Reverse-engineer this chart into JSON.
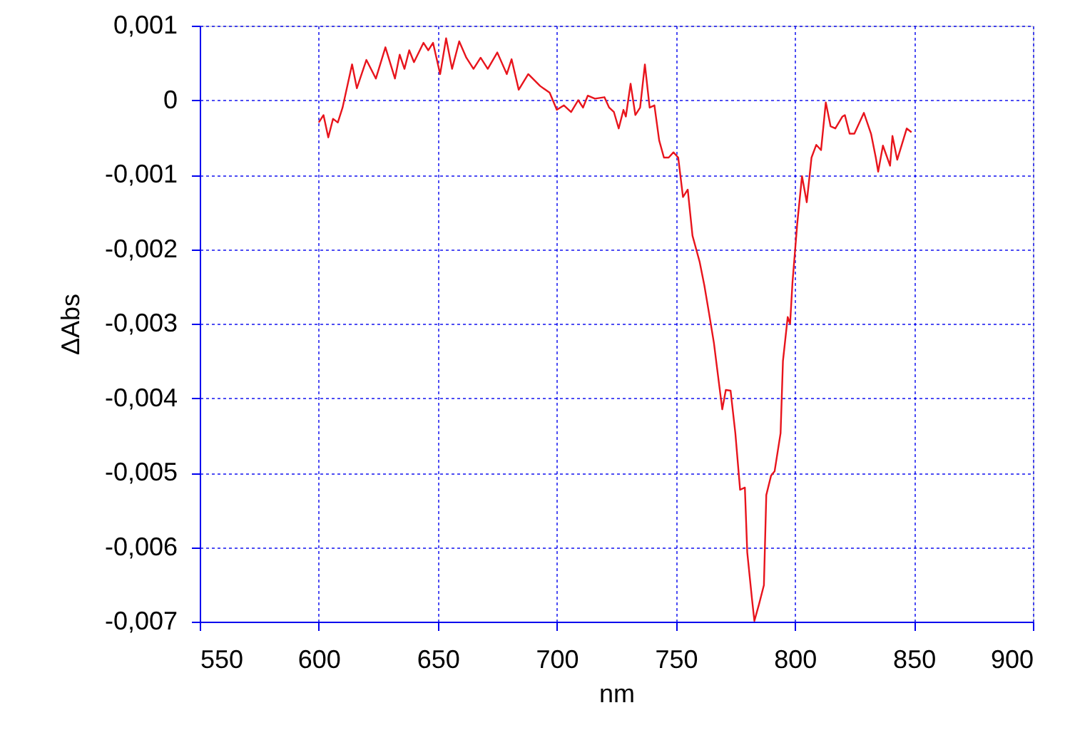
{
  "chart_data": {
    "type": "line",
    "xlabel": "nm",
    "ylabel": "ΔAbs",
    "x": [
      600,
      602,
      604,
      606,
      608,
      610,
      614,
      616,
      620,
      624,
      628,
      632,
      634,
      636,
      638,
      640,
      644,
      646,
      648,
      651,
      653.5,
      656,
      659,
      662,
      665,
      668,
      671,
      675,
      679,
      681,
      684,
      688,
      693,
      697,
      700,
      703,
      706,
      709,
      711,
      713,
      716,
      720,
      722,
      724,
      726,
      728,
      729,
      731,
      733,
      735,
      737,
      739,
      741,
      743,
      745,
      747,
      749,
      751,
      753,
      755,
      757,
      760,
      762,
      764,
      766,
      768,
      769.5,
      771,
      773,
      775,
      777,
      779,
      780,
      782,
      783,
      785,
      787,
      788,
      790,
      791.5,
      794,
      795,
      797,
      798,
      799,
      801,
      803,
      805,
      807,
      809,
      811,
      813,
      815,
      817,
      820,
      821,
      823,
      825,
      829,
      832,
      834,
      835,
      837,
      840,
      841,
      843,
      847,
      849
    ],
    "series": [
      {
        "color": "#e8141c",
        "values": [
          -0.0003,
          -0.0002,
          -0.0005,
          -0.00025,
          -0.0003,
          -0.0001,
          0.00048,
          0.00016,
          0.00054,
          0.00029,
          0.00071,
          0.00029,
          0.00061,
          0.00042,
          0.00067,
          0.00051,
          0.00077,
          0.00067,
          0.00077,
          0.00035,
          0.00083,
          0.00042,
          0.00079,
          0.00057,
          0.00042,
          0.00057,
          0.00042,
          0.00064,
          0.00035,
          0.00055,
          0.00014,
          0.00035,
          0.00019,
          0.0001,
          -0.00013,
          -7e-05,
          -0.00016,
          0,
          -0.0001,
          6e-05,
          2e-05,
          4e-05,
          -0.0001,
          -0.00016,
          -0.00038,
          -0.00013,
          -0.00022,
          0.00022,
          -0.0002,
          -0.0001,
          0.00048,
          -0.0001,
          -7e-05,
          -0.00054,
          -0.00077,
          -0.00077,
          -0.0007,
          -0.00077,
          -0.0013,
          -0.0012,
          -0.00182,
          -0.00217,
          -0.00249,
          -0.00287,
          -0.00326,
          -0.00377,
          -0.00415,
          -0.00389,
          -0.0039,
          -0.00447,
          -0.00523,
          -0.0052,
          -0.00607,
          -0.0067,
          -0.00699,
          -0.00676,
          -0.00651,
          -0.0053,
          -0.00504,
          -0.00498,
          -0.00447,
          -0.0035,
          -0.00291,
          -0.003,
          -0.00245,
          -0.00166,
          -0.00102,
          -0.00137,
          -0.00077,
          -0.0006,
          -0.00067,
          -3e-05,
          -0.00035,
          -0.00038,
          -0.00022,
          -0.0002,
          -0.00045,
          -0.00045,
          -0.00017,
          -0.00045,
          -0.00077,
          -0.00096,
          -0.00061,
          -0.00088,
          -0.00048,
          -0.0008,
          -0.00038,
          -0.00043
        ]
      }
    ],
    "xlim": [
      550,
      900
    ],
    "xticks": [
      550,
      600,
      650,
      700,
      750,
      800,
      850,
      900
    ],
    "ylim": [
      -0.007,
      0.001
    ],
    "yticks": [
      {
        "value": -0.007,
        "label": "-0,007"
      },
      {
        "value": -0.006,
        "label": "-0,006"
      },
      {
        "value": -0.005,
        "label": "-0,005"
      },
      {
        "value": -0.004,
        "label": "-0,004"
      },
      {
        "value": -0.003,
        "label": "-0,003"
      },
      {
        "value": -0.002,
        "label": "-0,002"
      },
      {
        "value": -0.001,
        "label": "-0,001"
      },
      {
        "value": 0,
        "label": "0"
      },
      {
        "value": 0.001,
        "label": "0,001"
      }
    ],
    "grid": true,
    "marker": "none",
    "line_style": "solid"
  }
}
